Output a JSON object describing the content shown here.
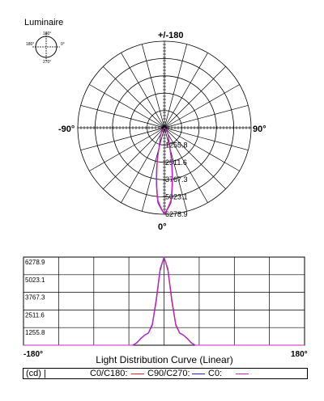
{
  "luminaire_label": "Luminaire",
  "mini_diagram": {
    "top": "180°",
    "left": "180°",
    "right": "0°",
    "bottom": "270°"
  },
  "polar": {
    "top_label": "+/-180",
    "left_label": "-90°",
    "right_label": "90°",
    "bottom_label": "0°",
    "ring_labels": [
      "1255.8",
      "2511.6",
      "3767.3",
      "5023.1",
      "6278.9"
    ]
  },
  "linear": {
    "y_tick_labels": [
      "6278.9",
      "5023.1",
      "3767.3",
      "2511.6",
      "1255.8"
    ],
    "x_min_label": "-180°",
    "x_max_label": "180°",
    "title": "Light Distribution Curve (Linear)"
  },
  "legend": {
    "unit": "(cd)  |",
    "c0_label": "C0/C180:",
    "c90_label": "C90/C270:",
    "c0b_label": "C0:"
  },
  "colors": {
    "c0_c180": "#ee2222",
    "c90_c270": "#2222ee",
    "c0": "#cc22cc",
    "grid": "#000000"
  },
  "chart_data": {
    "type": "line",
    "title": "Light Distribution Curve (Linear)",
    "xlabel": "",
    "ylabel": "(cd)",
    "xlim": [
      -180,
      180
    ],
    "ylim": [
      0,
      6278.9
    ],
    "yticks": [
      1255.8,
      2511.6,
      3767.3,
      5023.1,
      6278.9
    ],
    "grid": true,
    "legend_placement": "bottom",
    "x": [
      -180,
      -60,
      -40,
      -35,
      -30,
      -25,
      -20,
      -15,
      -10,
      -5,
      0,
      5,
      10,
      15,
      20,
      25,
      30,
      35,
      40,
      60,
      180
    ],
    "series": [
      {
        "name": "C0/C180",
        "color": "#ee2222",
        "values": [
          0,
          0,
          0,
          150,
          450,
          700,
          850,
          1400,
          3100,
          5300,
          6278.9,
          5300,
          3100,
          1400,
          850,
          700,
          450,
          150,
          0,
          0,
          0
        ]
      },
      {
        "name": "C90/C270",
        "color": "#2222ee",
        "values": [
          0,
          0,
          0,
          180,
          480,
          720,
          880,
          1500,
          3300,
          5450,
          6278.9,
          5450,
          3300,
          1500,
          880,
          720,
          480,
          180,
          0,
          0,
          0
        ]
      },
      {
        "name": "C0",
        "color": "#cc22cc",
        "values": [
          0,
          0,
          0,
          160,
          460,
          710,
          860,
          1450,
          3200,
          5380,
          6278.9,
          5380,
          3200,
          1450,
          860,
          710,
          460,
          160,
          0,
          0,
          0
        ]
      }
    ]
  }
}
